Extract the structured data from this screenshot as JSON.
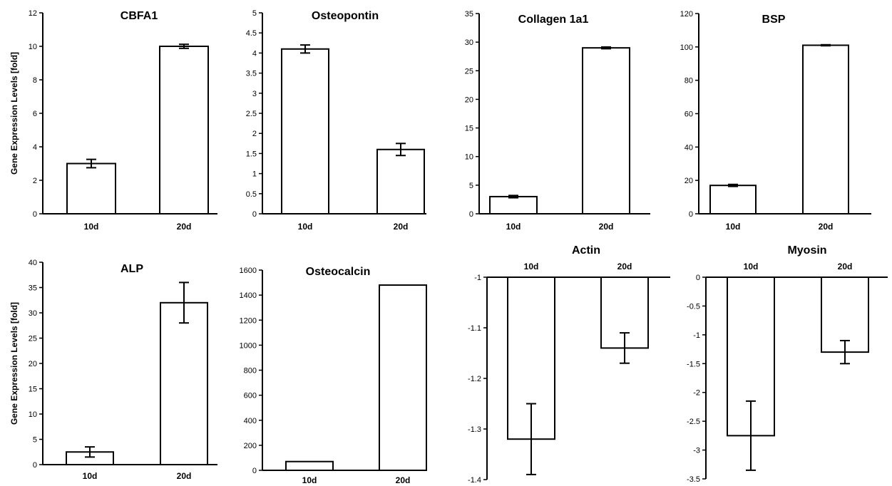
{
  "chart_data": [
    {
      "type": "bar",
      "title": "CBFA1",
      "ylabel": "Gene Expression Levels [fold]",
      "categories": [
        "10d",
        "20d"
      ],
      "values": [
        3.0,
        10.0
      ],
      "errors": [
        0.25,
        0.12
      ],
      "ylim": [
        0,
        12
      ],
      "yticks": [
        "0",
        "2",
        "4",
        "6",
        "8",
        "10",
        "12"
      ]
    },
    {
      "type": "bar",
      "title": "Osteopontin",
      "ylabel": "",
      "categories": [
        "10d",
        "20d"
      ],
      "values": [
        4.1,
        1.6
      ],
      "errors": [
        0.1,
        0.15
      ],
      "ylim": [
        0,
        5
      ],
      "yticks": [
        "0",
        "0.5",
        "1",
        "1.5",
        "2",
        "2.5",
        "3",
        "3.5",
        "4",
        "4.5",
        "5"
      ]
    },
    {
      "type": "bar",
      "title": "Collagen 1a1",
      "ylabel": "",
      "categories": [
        "10d",
        "20d"
      ],
      "values": [
        3.0,
        29.0
      ],
      "errors": [
        0.2,
        0.15
      ],
      "ylim": [
        0,
        35
      ],
      "yticks": [
        "0",
        "5",
        "10",
        "15",
        "20",
        "25",
        "30",
        "35"
      ]
    },
    {
      "type": "bar",
      "title": "BSP",
      "ylabel": "",
      "categories": [
        "10d",
        "20d"
      ],
      "values": [
        17.0,
        101.0
      ],
      "errors": [
        0.6,
        0.3
      ],
      "ylim": [
        0,
        120
      ],
      "yticks": [
        "0",
        "20",
        "40",
        "60",
        "80",
        "100",
        "120"
      ]
    },
    {
      "type": "bar",
      "title": "ALP",
      "ylabel": "Gene Expression Levels [fold]",
      "categories": [
        "10d",
        "20d"
      ],
      "values": [
        2.5,
        32.0
      ],
      "errors": [
        1.0,
        4.0
      ],
      "ylim": [
        0,
        40
      ],
      "yticks": [
        "0",
        "5",
        "10",
        "15",
        "20",
        "25",
        "30",
        "35",
        "40"
      ]
    },
    {
      "type": "bar",
      "title": "Osteocalcin",
      "ylabel": "",
      "categories": [
        "10d",
        "20d"
      ],
      "values": [
        70,
        1480
      ],
      "errors": [
        0,
        0
      ],
      "ylim": [
        0,
        1600
      ],
      "yticks": [
        "0",
        "200",
        "400",
        "600",
        "800",
        "1000",
        "1200",
        "1400",
        "1600"
      ]
    },
    {
      "type": "bar",
      "title": "Actin",
      "ylabel": "",
      "categories": [
        "10d",
        "20d"
      ],
      "values": [
        -1.32,
        -1.14
      ],
      "errors": [
        0.07,
        0.03
      ],
      "ylim": [
        -1.4,
        -1
      ],
      "yticks": [
        "-1.4",
        "-1.3",
        "-1.2",
        "-1.1",
        "-1"
      ]
    },
    {
      "type": "bar",
      "title": "Myosin",
      "ylabel": "",
      "categories": [
        "10d",
        "20d"
      ],
      "values": [
        -2.75,
        -1.3
      ],
      "errors": [
        0.6,
        0.2
      ],
      "ylim": [
        -3.5,
        0
      ],
      "yticks": [
        "-3.5",
        "-3",
        "-2.5",
        "-2",
        "-1.5",
        "-1",
        "-0.5",
        "0"
      ]
    }
  ]
}
